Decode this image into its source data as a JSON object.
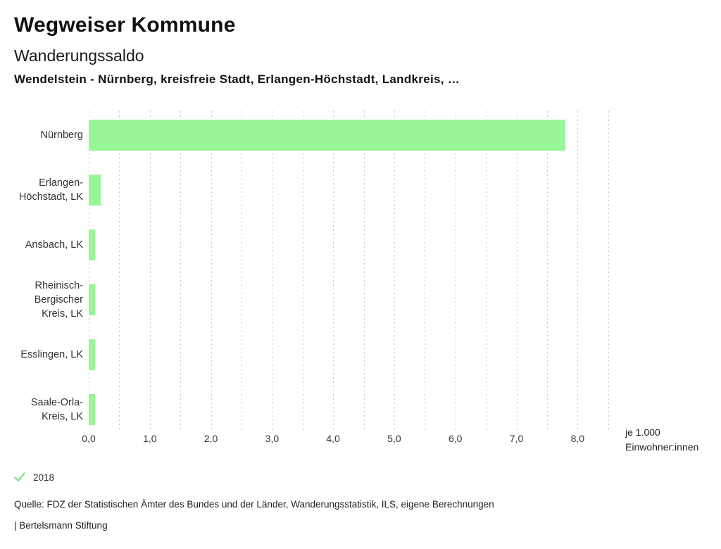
{
  "header": {
    "app_title": "Wegweiser Kommune",
    "chart_title": "Wanderungssaldo",
    "chart_subtitle": "Wendelstein - Nürnberg, kreisfreie Stadt, Erlangen-Höchstadt, Landkreis, …"
  },
  "chart_data": {
    "type": "bar",
    "orientation": "horizontal",
    "title": "Wanderungssaldo",
    "categories": [
      "Nürnberg",
      "Erlangen-Höchstadt, LK",
      "Ansbach, LK",
      "Rheinisch-Bergischer Kreis, LK",
      "Esslingen, LK",
      "Saale-Orla-Kreis, LK"
    ],
    "category_label_lines": [
      [
        "Nürnberg"
      ],
      [
        "Erlangen-",
        "Höchstadt, LK"
      ],
      [
        "Ansbach, LK"
      ],
      [
        "Rheinisch-",
        "Bergischer",
        "Kreis, LK"
      ],
      [
        "Esslingen, LK"
      ],
      [
        "Saale-Orla-",
        "Kreis, LK"
      ]
    ],
    "series": [
      {
        "name": "2018",
        "color": "#98f598",
        "values": [
          7.8,
          0.2,
          0.1,
          0.1,
          0.1,
          0.1
        ]
      }
    ],
    "xlim": [
      0,
      8.55
    ],
    "xticks": [
      0,
      1,
      2,
      3,
      4,
      5,
      6,
      7,
      8
    ],
    "xtick_labels": [
      "0,0",
      "1,0",
      "2,0",
      "3,0",
      "4,0",
      "5,0",
      "6,0",
      "7,0",
      "8,0"
    ],
    "grid_interval": 0.5,
    "grid_max": 8.5,
    "grid_style": "vertical-dotted",
    "unit_label_lines": [
      "je 1.000",
      "Einwohner:innen"
    ],
    "legend_position": "bottom-left"
  },
  "legend": {
    "items": [
      {
        "label": "2018",
        "marker": "check-icon",
        "color": "#8fe58f",
        "checked": true
      }
    ]
  },
  "footer": {
    "source": "Quelle: FDZ der Statistischen Ämter des Bundes und der Länder, Wanderungsstatistik, ILS, eigene Berechnungen",
    "brand": "| Bertelsmann Stiftung"
  },
  "colors": {
    "bar_green": "#98f598",
    "gridline_gray": "#c6c6c6",
    "text_dark": "#1a1a1a"
  }
}
